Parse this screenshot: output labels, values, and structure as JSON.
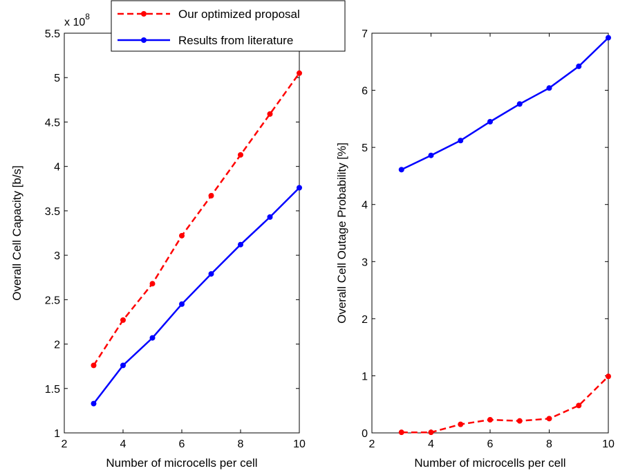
{
  "chart_data": [
    {
      "type": "line",
      "xlabel": "Number of microcells per cell",
      "ylabel": "Overall Cell Capacity [b/s]",
      "exponent": {
        "base": "x 10",
        "power": "8"
      },
      "xlim": [
        2,
        10
      ],
      "ylim": [
        1,
        5.5
      ],
      "xticks": [
        "2",
        "4",
        "6",
        "8",
        "10"
      ],
      "yticks": [
        "1",
        "1.5",
        "2",
        "2.5",
        "3",
        "3.5",
        "4",
        "4.5",
        "5",
        "5.5"
      ],
      "x": [
        3,
        4,
        5,
        6,
        7,
        8,
        9,
        10
      ],
      "series": [
        {
          "name": "Our optimized proposal",
          "color": "#ff0000",
          "dash": "dashed",
          "values": [
            1.76,
            2.27,
            2.68,
            3.22,
            3.67,
            4.13,
            4.59,
            5.05
          ]
        },
        {
          "name": "Results from literature",
          "color": "#0000ff",
          "dash": "solid",
          "values": [
            1.33,
            1.76,
            2.07,
            2.45,
            2.79,
            3.12,
            3.43,
            3.76
          ]
        }
      ],
      "legend": "top-center",
      "grid": false
    },
    {
      "type": "line",
      "xlabel": "Number of microcells per cell",
      "ylabel": "Overall Cell Outage Probability [%]",
      "xlim": [
        2,
        10
      ],
      "ylim": [
        0,
        7
      ],
      "xticks": [
        "2",
        "4",
        "6",
        "8",
        "10"
      ],
      "yticks": [
        "0",
        "1",
        "2",
        "3",
        "4",
        "5",
        "6",
        "7"
      ],
      "x": [
        3,
        4,
        5,
        6,
        7,
        8,
        9,
        10
      ],
      "series": [
        {
          "name": "Our optimized proposal",
          "color": "#ff0000",
          "dash": "dashed",
          "values": [
            0.01,
            0.01,
            0.15,
            0.23,
            0.21,
            0.25,
            0.48,
            0.99
          ]
        },
        {
          "name": "Results from literature",
          "color": "#0000ff",
          "dash": "solid",
          "values": [
            4.61,
            4.86,
            5.12,
            5.45,
            5.76,
            6.04,
            6.42,
            6.92
          ]
        }
      ],
      "grid": false
    }
  ]
}
